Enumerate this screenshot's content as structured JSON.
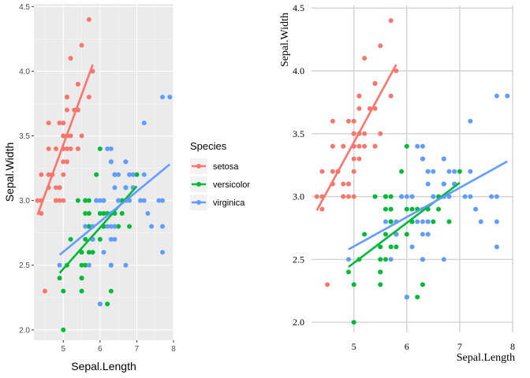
{
  "chart_data": [
    {
      "type": "scatter",
      "style": "ggplot-grey",
      "xlabel": "Sepal.Length",
      "ylabel": "Sepal.Width",
      "xlim": [
        4.2,
        8.0
      ],
      "ylim": [
        1.92,
        4.52
      ],
      "x_ticks": [
        5,
        6,
        7,
        8
      ],
      "y_ticks": [
        "2.0",
        "2.5",
        "3.0",
        "3.5",
        "4.0",
        "4.5"
      ],
      "grid": true,
      "legend": {
        "title": "Species",
        "placement": "right",
        "entries": [
          "setosa",
          "versicolor",
          "virginica"
        ]
      },
      "series": [
        {
          "name": "setosa",
          "color": "#F8766D",
          "points": [
            [
              5.1,
              3.5
            ],
            [
              4.9,
              3.0
            ],
            [
              4.7,
              3.2
            ],
            [
              4.6,
              3.1
            ],
            [
              5.0,
              3.6
            ],
            [
              5.4,
              3.9
            ],
            [
              4.6,
              3.4
            ],
            [
              5.0,
              3.4
            ],
            [
              4.4,
              2.9
            ],
            [
              4.9,
              3.1
            ],
            [
              5.4,
              3.7
            ],
            [
              4.8,
              3.4
            ],
            [
              4.8,
              3.0
            ],
            [
              4.3,
              3.0
            ],
            [
              5.8,
              4.0
            ],
            [
              5.7,
              4.4
            ],
            [
              5.4,
              3.9
            ],
            [
              5.1,
              3.5
            ],
            [
              5.7,
              3.8
            ],
            [
              5.1,
              3.8
            ],
            [
              5.4,
              3.4
            ],
            [
              5.1,
              3.7
            ],
            [
              4.6,
              3.6
            ],
            [
              5.1,
              3.3
            ],
            [
              4.8,
              3.4
            ],
            [
              5.0,
              3.0
            ],
            [
              5.0,
              3.4
            ],
            [
              5.2,
              3.5
            ],
            [
              5.2,
              3.4
            ],
            [
              4.7,
              3.2
            ],
            [
              4.8,
              3.1
            ],
            [
              5.4,
              3.4
            ],
            [
              5.2,
              4.1
            ],
            [
              5.5,
              4.2
            ],
            [
              4.9,
              3.1
            ],
            [
              5.0,
              3.2
            ],
            [
              5.5,
              3.5
            ],
            [
              4.9,
              3.6
            ],
            [
              4.4,
              3.0
            ],
            [
              5.1,
              3.4
            ],
            [
              5.0,
              3.5
            ],
            [
              4.5,
              2.3
            ],
            [
              4.4,
              3.2
            ],
            [
              5.0,
              3.5
            ],
            [
              5.1,
              3.8
            ],
            [
              4.8,
              3.0
            ],
            [
              5.1,
              3.8
            ],
            [
              4.6,
              3.2
            ],
            [
              5.3,
              3.7
            ],
            [
              5.0,
              3.3
            ]
          ],
          "trend": [
            [
              4.3,
              2.89
            ],
            [
              5.8,
              4.05
            ]
          ]
        },
        {
          "name": "versicolor",
          "color": "#00BA38",
          "points": [
            [
              7.0,
              3.2
            ],
            [
              6.4,
              3.2
            ],
            [
              6.9,
              3.1
            ],
            [
              5.5,
              2.3
            ],
            [
              6.5,
              2.8
            ],
            [
              5.7,
              2.8
            ],
            [
              6.3,
              3.3
            ],
            [
              4.9,
              2.4
            ],
            [
              6.6,
              2.9
            ],
            [
              5.2,
              2.7
            ],
            [
              5.0,
              2.0
            ],
            [
              5.9,
              3.0
            ],
            [
              6.0,
              2.2
            ],
            [
              6.1,
              2.9
            ],
            [
              5.6,
              2.9
            ],
            [
              6.7,
              3.1
            ],
            [
              5.6,
              3.0
            ],
            [
              5.8,
              2.7
            ],
            [
              6.2,
              2.2
            ],
            [
              5.6,
              2.5
            ],
            [
              5.9,
              3.2
            ],
            [
              6.1,
              2.8
            ],
            [
              6.3,
              2.5
            ],
            [
              6.1,
              2.8
            ],
            [
              6.4,
              2.9
            ],
            [
              6.6,
              3.0
            ],
            [
              6.8,
              2.8
            ],
            [
              6.7,
              3.0
            ],
            [
              6.0,
              2.9
            ],
            [
              5.7,
              2.6
            ],
            [
              5.5,
              2.4
            ],
            [
              5.5,
              2.4
            ],
            [
              5.8,
              2.7
            ],
            [
              6.0,
              2.7
            ],
            [
              5.4,
              3.0
            ],
            [
              6.0,
              3.4
            ],
            [
              6.7,
              3.1
            ],
            [
              6.3,
              2.3
            ],
            [
              5.6,
              3.0
            ],
            [
              5.5,
              2.5
            ],
            [
              5.5,
              2.6
            ],
            [
              6.1,
              3.0
            ],
            [
              5.8,
              2.6
            ],
            [
              5.0,
              2.3
            ],
            [
              5.6,
              2.7
            ],
            [
              5.7,
              3.0
            ],
            [
              5.7,
              2.9
            ],
            [
              6.2,
              2.9
            ],
            [
              5.1,
              2.5
            ],
            [
              5.7,
              2.8
            ]
          ],
          "trend": [
            [
              4.9,
              2.44
            ],
            [
              7.0,
              3.11
            ]
          ]
        },
        {
          "name": "virginica",
          "color": "#619CFF",
          "points": [
            [
              6.3,
              3.3
            ],
            [
              5.8,
              2.7
            ],
            [
              7.1,
              3.0
            ],
            [
              6.3,
              2.9
            ],
            [
              6.5,
              3.0
            ],
            [
              7.6,
              3.0
            ],
            [
              4.9,
              2.5
            ],
            [
              7.3,
              2.9
            ],
            [
              6.7,
              2.5
            ],
            [
              7.2,
              3.6
            ],
            [
              6.5,
              3.2
            ],
            [
              6.4,
              2.7
            ],
            [
              6.8,
              3.0
            ],
            [
              5.7,
              2.5
            ],
            [
              5.8,
              2.8
            ],
            [
              6.4,
              3.2
            ],
            [
              6.5,
              3.0
            ],
            [
              7.7,
              3.8
            ],
            [
              7.7,
              2.6
            ],
            [
              6.0,
              2.2
            ],
            [
              6.9,
              3.2
            ],
            [
              5.6,
              2.8
            ],
            [
              7.7,
              2.8
            ],
            [
              6.3,
              2.7
            ],
            [
              6.7,
              3.3
            ],
            [
              7.2,
              3.2
            ],
            [
              6.2,
              2.8
            ],
            [
              6.1,
              3.0
            ],
            [
              6.4,
              2.8
            ],
            [
              7.2,
              3.0
            ],
            [
              7.4,
              2.8
            ],
            [
              7.9,
              3.8
            ],
            [
              6.4,
              2.8
            ],
            [
              6.3,
              2.8
            ],
            [
              6.1,
              2.6
            ],
            [
              7.7,
              3.0
            ],
            [
              6.3,
              3.4
            ],
            [
              6.4,
              3.1
            ],
            [
              6.0,
              3.0
            ],
            [
              6.9,
              3.1
            ],
            [
              6.7,
              3.1
            ],
            [
              6.9,
              3.1
            ],
            [
              5.8,
              2.7
            ],
            [
              6.8,
              3.2
            ],
            [
              6.7,
              3.3
            ],
            [
              6.7,
              3.0
            ],
            [
              6.3,
              2.5
            ],
            [
              6.5,
              3.0
            ],
            [
              6.2,
              3.4
            ],
            [
              5.9,
              3.0
            ]
          ],
          "trend": [
            [
              4.9,
              2.58
            ],
            [
              7.9,
              3.28
            ]
          ]
        }
      ]
    },
    {
      "type": "scatter",
      "style": "base-grid",
      "xlabel": "Sepal.Length",
      "ylabel": "Sepal.Width",
      "xlim": [
        4.2,
        8.0
      ],
      "ylim": [
        1.92,
        4.52
      ],
      "x_ticks": [
        5,
        6,
        7,
        8
      ],
      "y_ticks": [
        "2.0",
        "2.5",
        "3.0",
        "3.5",
        "4.0",
        "4.5"
      ],
      "grid": true,
      "series_ref": "same as first chart (setosa, versicolor, virginica)"
    }
  ]
}
